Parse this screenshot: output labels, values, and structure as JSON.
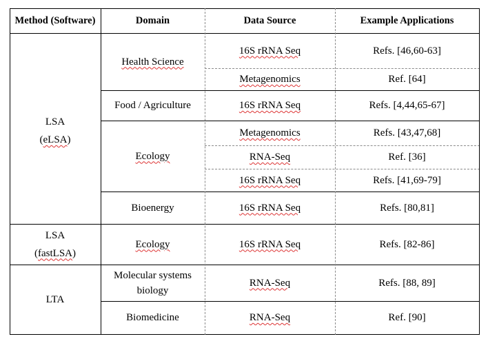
{
  "headers": {
    "method": "Method (Software)",
    "domain": "Domain",
    "source": "Data Source",
    "apps": "Example Applications"
  },
  "methods": [
    {
      "name": "LSA",
      "software": "eLSA"
    },
    {
      "name": "LSA",
      "software": "fastLSA"
    },
    {
      "name": "LTA"
    }
  ],
  "domains": {
    "health": "Health Science",
    "food": "Food / Agriculture",
    "ecology1": "Ecology",
    "bioenergy": "Bioenergy",
    "ecology2": "Ecology",
    "molsys1": "Molecular systems",
    "molsys2": "biology",
    "biomed": "Biomedicine"
  },
  "rows": [
    {
      "source": "16S rRNA Seq",
      "apps": "Refs. [46,60-63]"
    },
    {
      "source": "Metagenomics",
      "apps": "Ref. [64]"
    },
    {
      "source": "16S rRNA Seq",
      "apps": "Refs. [4,44,65-67]"
    },
    {
      "source": "Metagenomics",
      "apps": "Refs. [43,47,68]"
    },
    {
      "source": "RNA-Seq",
      "apps": "Ref. [36]"
    },
    {
      "source": "16S rRNA Seq",
      "apps": "Refs. [41,69-79]"
    },
    {
      "source": "16S rRNA Seq",
      "apps": "Refs. [80,81]"
    },
    {
      "source": "16S rRNA Seq",
      "apps": "Refs. [82-86]"
    },
    {
      "source": "RNA-Seq",
      "apps": "Refs. [88, 89]"
    },
    {
      "source": "RNA-Seq",
      "apps": "Ref. [90]"
    }
  ]
}
